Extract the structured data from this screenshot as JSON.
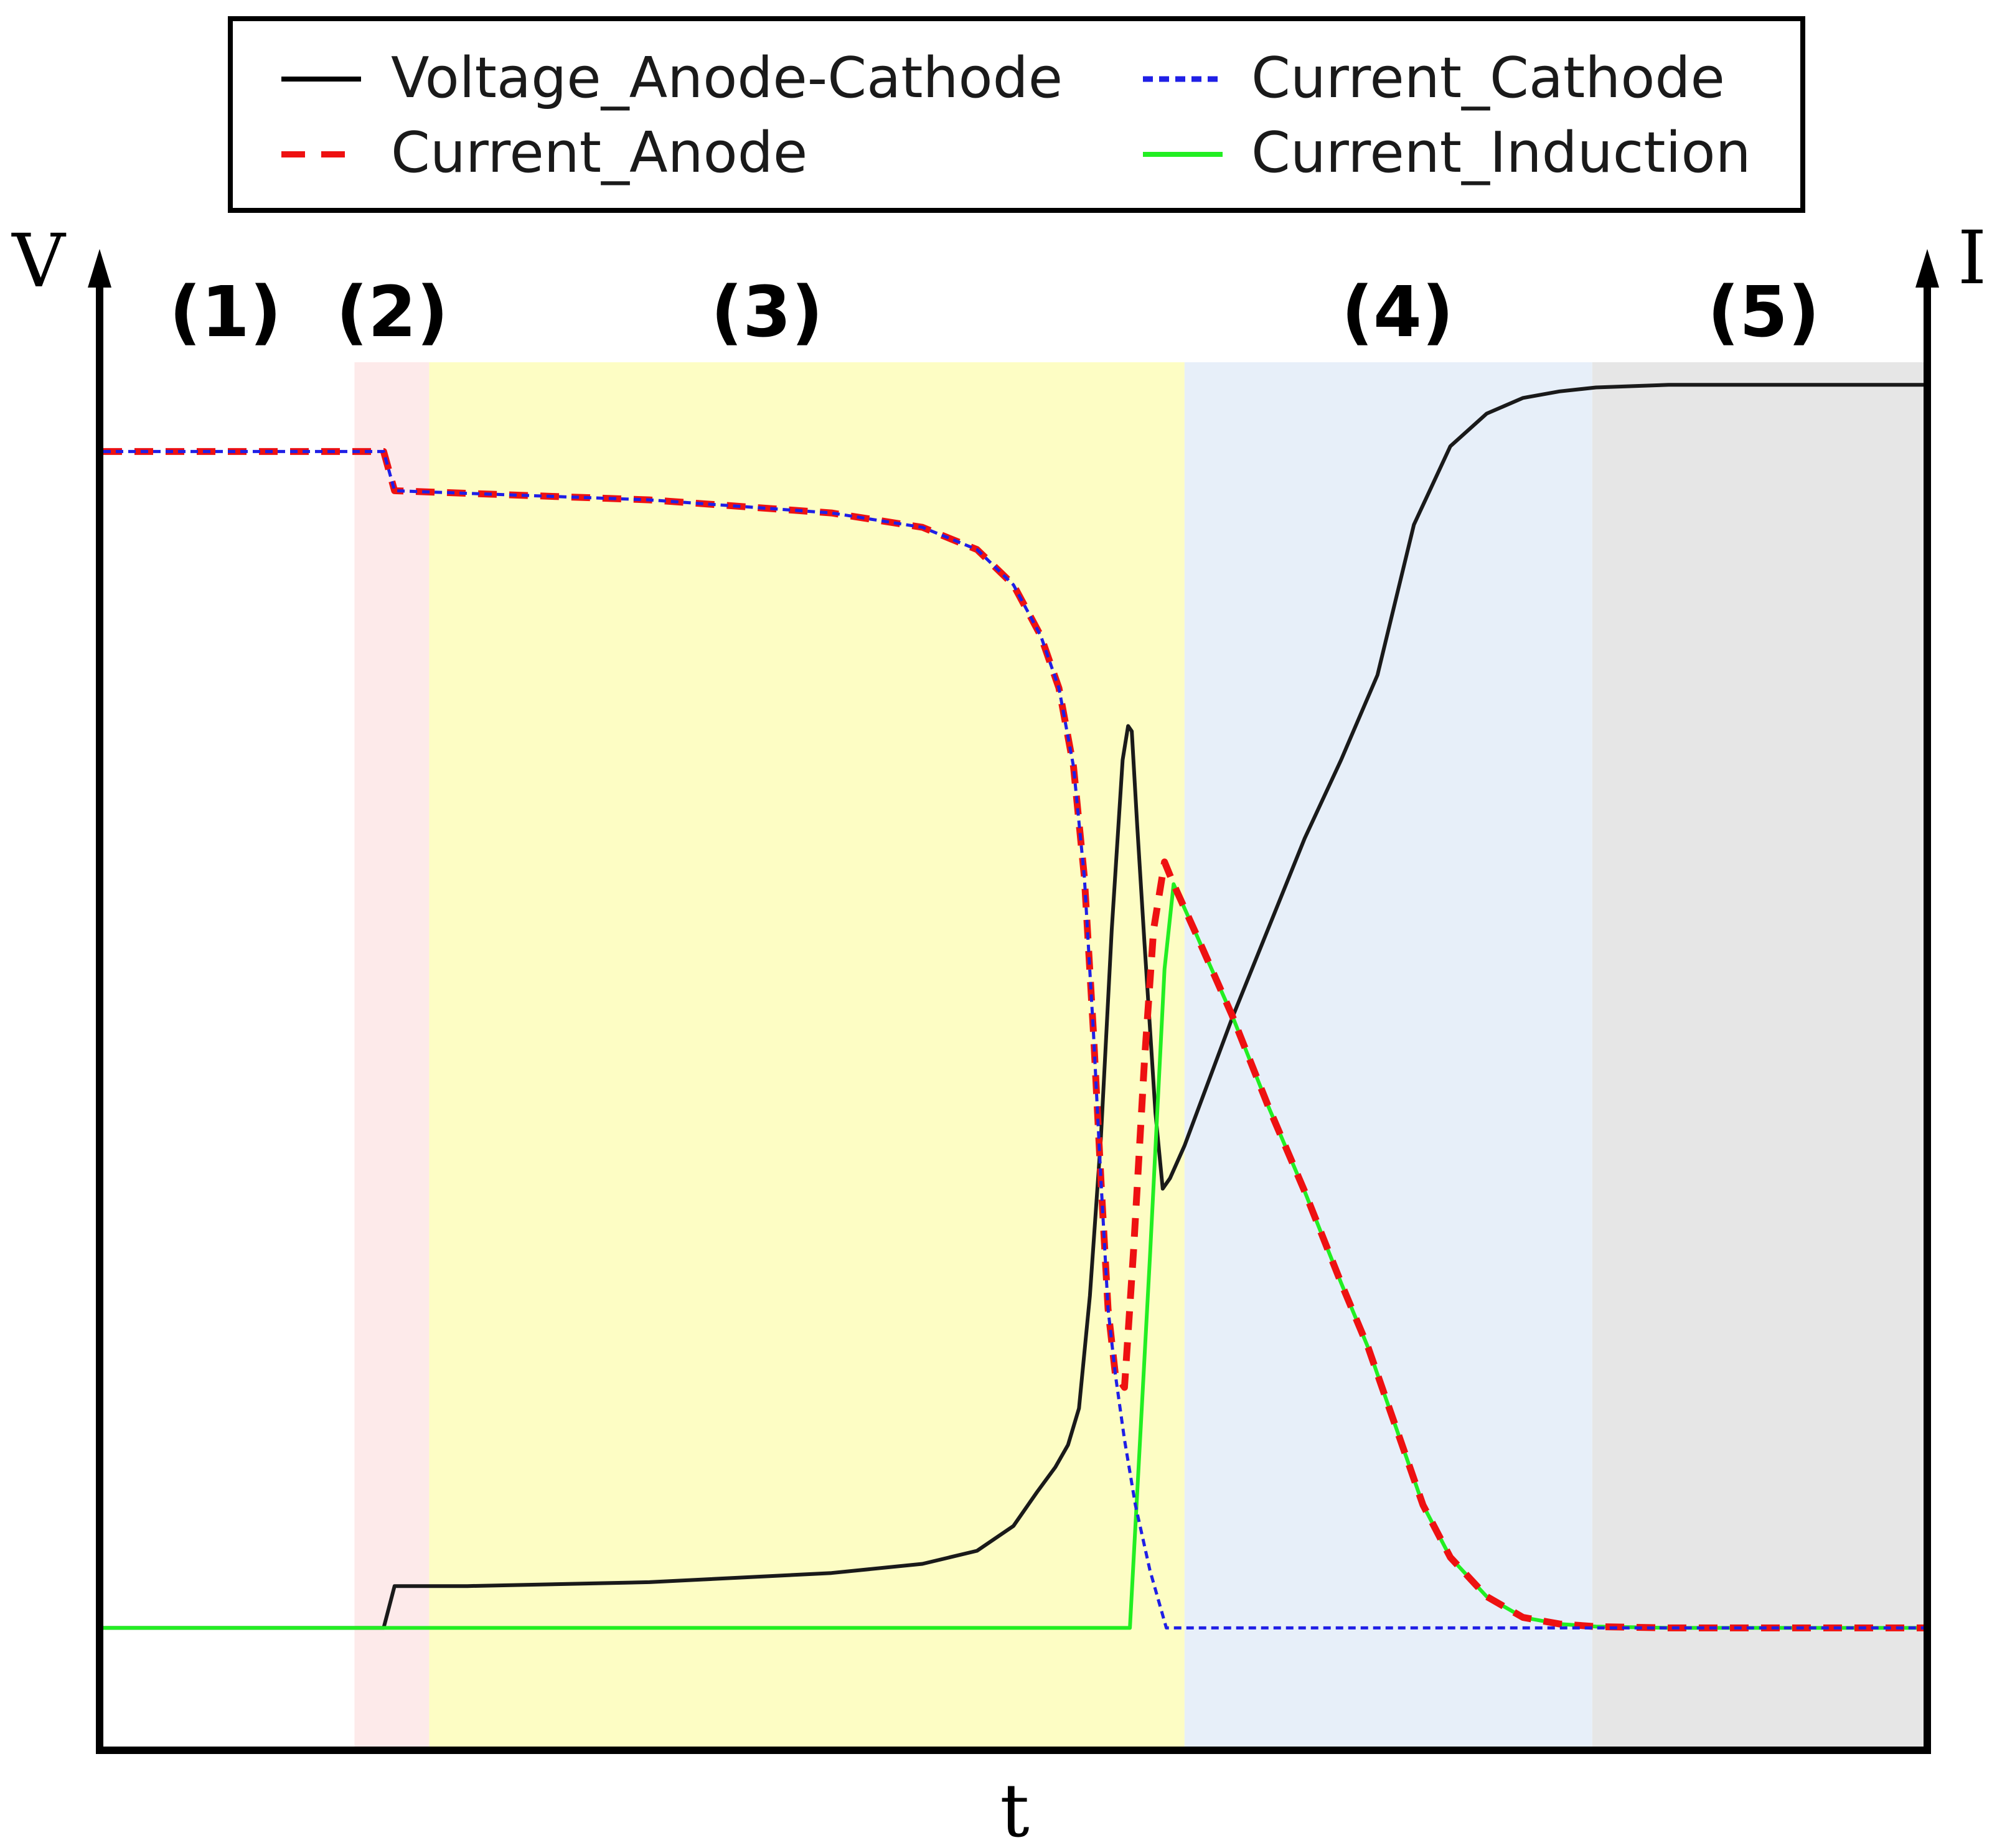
{
  "chart_data": {
    "type": "line",
    "title": "",
    "xlabel": "t",
    "ylabel_left": "V",
    "ylabel_right": "I",
    "xlim": [
      0,
      100
    ],
    "ylim": [
      0,
      100
    ],
    "grid": false,
    "legend": {
      "placement": "top-center",
      "entries": [
        {
          "name": "Voltage_Anode-Cathode",
          "color": "#1a1a1a",
          "dash": "solid"
        },
        {
          "name": "Current_Cathode",
          "color": "#1f1fe6",
          "dash": "dotted"
        },
        {
          "name": "Current_Anode",
          "color": "#ee1111",
          "dash": "dashed"
        },
        {
          "name": "Current_Induction",
          "color": "#22ee22",
          "dash": "solid"
        }
      ]
    },
    "regions": [
      {
        "label": "(1)",
        "x0": 0.0,
        "x1": 13.8,
        "color": "#ffffff"
      },
      {
        "label": "(2)",
        "x0": 13.8,
        "x1": 17.9,
        "color": "#fdeaea"
      },
      {
        "label": "(3)",
        "x0": 17.9,
        "x1": 59.4,
        "color": "#fdfdc4"
      },
      {
        "label": "(4)",
        "x0": 59.4,
        "x1": 81.8,
        "color": "#e7eff9"
      },
      {
        "label": "(5)",
        "x0": 81.8,
        "x1": 100.0,
        "color": "#e6e6e6"
      }
    ],
    "series": [
      {
        "name": "Voltage_Anode-Cathode",
        "color": "#1a1a1a",
        "x": [
          0,
          15.4,
          16.0,
          20.0,
          30.0,
          40.0,
          45.0,
          48.0,
          50.0,
          51.3,
          52.3,
          53.0,
          53.6,
          54.2,
          54.8,
          55.4,
          56.0,
          56.3,
          56.5,
          56.8,
          57.2,
          57.8,
          58.2,
          58.6,
          59.4,
          62.0,
          66.0,
          68.0,
          70.0,
          72.0,
          74.0,
          76.0,
          78.0,
          80.0,
          82.0,
          84.0,
          86.0,
          90.0,
          95.0,
          100.0
        ],
        "y": [
          4.6,
          4.6,
          7.8,
          7.8,
          8.1,
          8.8,
          9.5,
          10.5,
          12.4,
          15.0,
          16.9,
          18.6,
          21.4,
          30.0,
          42.0,
          58.0,
          71.0,
          73.6,
          73.2,
          66.0,
          57.0,
          44.0,
          38.2,
          39.0,
          41.5,
          51.2,
          65.0,
          71.0,
          77.5,
          89.0,
          95.0,
          97.5,
          98.7,
          99.2,
          99.5,
          99.6,
          99.7,
          99.7,
          99.7,
          99.7
        ]
      },
      {
        "name": "Current_Cathode",
        "color": "#1f1fe6",
        "x": [
          0,
          15.4,
          16.0,
          20.0,
          30.0,
          40.0,
          45.0,
          48.0,
          50.0,
          51.5,
          52.5,
          53.3,
          53.9,
          54.4,
          54.8,
          55.2,
          55.6,
          56.1,
          56.7,
          57.5,
          58.4,
          59.4,
          70.0,
          80.0,
          90.0,
          100.0
        ],
        "y": [
          94.6,
          94.6,
          91.6,
          91.4,
          90.9,
          89.9,
          88.8,
          87.1,
          84.4,
          80.5,
          76.5,
          70.5,
          62.0,
          50.0,
          39.0,
          29.0,
          24.0,
          19.0,
          14.0,
          9.0,
          4.6,
          4.6,
          4.6,
          4.6,
          4.6,
          4.6
        ]
      },
      {
        "name": "Current_Anode",
        "color": "#ee1111",
        "x": [
          0,
          15.4,
          16.0,
          20.0,
          30.0,
          40.0,
          45.0,
          48.0,
          50.0,
          51.5,
          52.5,
          53.3,
          53.9,
          54.4,
          54.8,
          55.2,
          55.6,
          56.1,
          56.6,
          57.2,
          57.7,
          58.3,
          58.8,
          60.0,
          62.0,
          64.0,
          66.0,
          68.0,
          69.5,
          70.5,
          71.5,
          72.5,
          74.0,
          76.0,
          78.0,
          80.0,
          82.0,
          86.0,
          90.0,
          95.0,
          100.0
        ],
        "y": [
          94.6,
          94.6,
          91.6,
          91.4,
          90.9,
          89.9,
          88.8,
          87.1,
          84.4,
          80.5,
          76.5,
          70.5,
          62.0,
          50.0,
          39.0,
          29.0,
          24.0,
          23.0,
          33.5,
          48.0,
          58.0,
          63.2,
          61.5,
          57.8,
          51.5,
          44.5,
          38.0,
          31.0,
          26.0,
          22.0,
          18.0,
          14.0,
          10.0,
          7.0,
          5.4,
          4.9,
          4.7,
          4.6,
          4.6,
          4.6,
          4.6
        ]
      },
      {
        "name": "Current_Induction",
        "color": "#22ee22",
        "x": [
          0,
          20.0,
          40.0,
          56.4,
          57.5,
          58.3,
          58.8,
          60.0,
          62.0,
          64.0,
          66.0,
          68.0,
          69.5,
          70.5,
          71.5,
          72.5,
          74.0,
          76.0,
          78.0,
          80.0,
          82.0,
          86.0,
          90.0,
          95.0,
          100.0
        ],
        "y": [
          4.6,
          4.6,
          4.6,
          4.6,
          33.0,
          55.0,
          61.5,
          57.8,
          51.5,
          44.5,
          38.0,
          31.0,
          26.0,
          22.0,
          18.0,
          14.0,
          10.0,
          7.0,
          5.4,
          4.9,
          4.7,
          4.6,
          4.6,
          4.6,
          4.6
        ]
      }
    ]
  }
}
